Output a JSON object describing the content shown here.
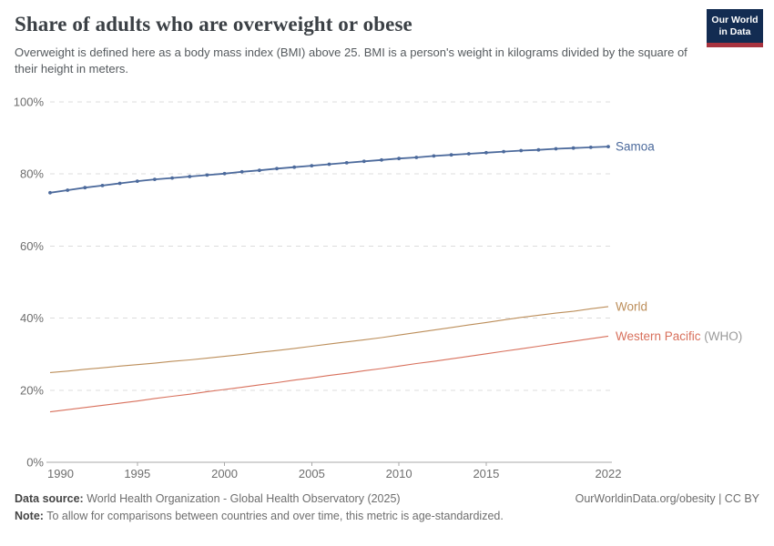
{
  "header": {
    "title": "Share of adults who are overweight or obese",
    "subtitle": "Overweight is defined here as a body mass index (BMI) above 25. BMI is a person's weight in kilograms divided by the square of their height in meters.",
    "logo": {
      "line1": "Our World",
      "line2": "in Data",
      "bg_color": "#132c52",
      "stripe_color": "#a8333f"
    }
  },
  "chart_data": {
    "type": "line",
    "title": "Share of adults who are overweight or obese",
    "xlabel": "",
    "ylabel": "",
    "ylim": [
      0,
      100
    ],
    "yticks": [
      0,
      20,
      40,
      60,
      80,
      100
    ],
    "ytick_suffix": "%",
    "xticks": [
      1990,
      1995,
      2000,
      2005,
      2010,
      2015,
      2022
    ],
    "grid": "horizontal-dashed",
    "grid_color": "#dcdcdc",
    "axis_color": "#a9a9a9",
    "tick_label_color": "#6e6e6e",
    "legend_position": "right-of-line-ends",
    "x": [
      1990,
      1991,
      1992,
      1993,
      1994,
      1995,
      1996,
      1997,
      1998,
      1999,
      2000,
      2001,
      2002,
      2003,
      2004,
      2005,
      2006,
      2007,
      2008,
      2009,
      2010,
      2011,
      2012,
      2013,
      2014,
      2015,
      2016,
      2017,
      2018,
      2019,
      2020,
      2021,
      2022
    ],
    "series": [
      {
        "name": "Samoa",
        "suffix": "",
        "color": "#4c6a9c",
        "markers": true,
        "values": [
          74.8,
          75.5,
          76.2,
          76.8,
          77.4,
          78.0,
          78.5,
          78.9,
          79.3,
          79.7,
          80.1,
          80.6,
          81.0,
          81.5,
          81.9,
          82.3,
          82.7,
          83.1,
          83.5,
          83.9,
          84.3,
          84.6,
          85.0,
          85.3,
          85.6,
          85.9,
          86.2,
          86.5,
          86.7,
          87.0,
          87.2,
          87.4,
          87.6
        ]
      },
      {
        "name": "World",
        "suffix": "",
        "color": "#bc8e5a",
        "markers": false,
        "values": [
          24.9,
          25.3,
          25.8,
          26.2,
          26.7,
          27.1,
          27.5,
          28.0,
          28.4,
          28.9,
          29.4,
          29.9,
          30.5,
          31.0,
          31.6,
          32.2,
          32.8,
          33.4,
          34.0,
          34.6,
          35.3,
          36.0,
          36.7,
          37.4,
          38.1,
          38.8,
          39.5,
          40.2,
          40.8,
          41.4,
          41.9,
          42.6,
          43.2
        ]
      },
      {
        "name": "Western Pacific",
        "suffix": " (WHO)",
        "color": "#d8705c",
        "markers": false,
        "values": [
          14.0,
          14.6,
          15.2,
          15.8,
          16.4,
          17.0,
          17.7,
          18.3,
          18.9,
          19.6,
          20.2,
          20.8,
          21.5,
          22.1,
          22.8,
          23.4,
          24.1,
          24.7,
          25.4,
          26.0,
          26.7,
          27.4,
          28.0,
          28.7,
          29.4,
          30.1,
          30.8,
          31.5,
          32.2,
          32.9,
          33.6,
          34.3,
          35.0
        ]
      }
    ],
    "suffix_color": "#9a9a9a"
  },
  "footer": {
    "data_source_label": "Data source:",
    "data_source": " World Health Organization - Global Health Observatory (2025)",
    "note_label": "Note:",
    "note": " To allow for comparisons between countries and over time, this metric is age-standardized.",
    "link": "OurWorldinData.org/obesity | CC BY"
  }
}
